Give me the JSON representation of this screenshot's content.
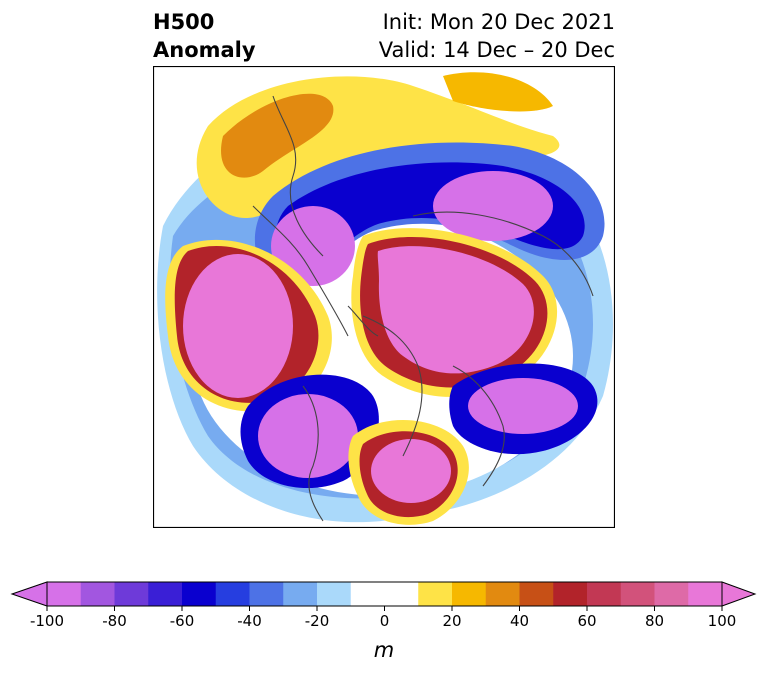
{
  "title": {
    "left_line1": "H500",
    "left_line2": "Anomaly",
    "right_line1": "Init: Mon 20 Dec 2021",
    "right_line2": "Valid: 14 Dec – 20 Dec"
  },
  "colorbar": {
    "unit": "m",
    "tick_labels": [
      "-100",
      "-80",
      "-60",
      "-40",
      "-20",
      "0",
      "20",
      "40",
      "60",
      "80",
      "100"
    ],
    "levels": [
      -100,
      -90,
      -80,
      -70,
      -60,
      -50,
      -40,
      -30,
      -20,
      -10,
      10,
      20,
      30,
      40,
      50,
      60,
      70,
      80,
      90,
      100
    ],
    "colors": [
      "#d671e8",
      "#a256e0",
      "#6e3ad9",
      "#3a1fd6",
      "#0a00cf",
      "#263ee0",
      "#4d72e6",
      "#77abf0",
      "#aad9fa",
      "#ffffff",
      "#fee347",
      "#f6b800",
      "#e28a10",
      "#c75016",
      "#b2232a",
      "#c23854",
      "#d2527b",
      "#de6aa7",
      "#e877d8"
    ],
    "extend_low_color": "#d671e8",
    "extend_high_color": "#e877d8"
  },
  "map": {
    "projection": "north-polar-stereographic",
    "field": "500 hPa geopotential height anomaly"
  }
}
